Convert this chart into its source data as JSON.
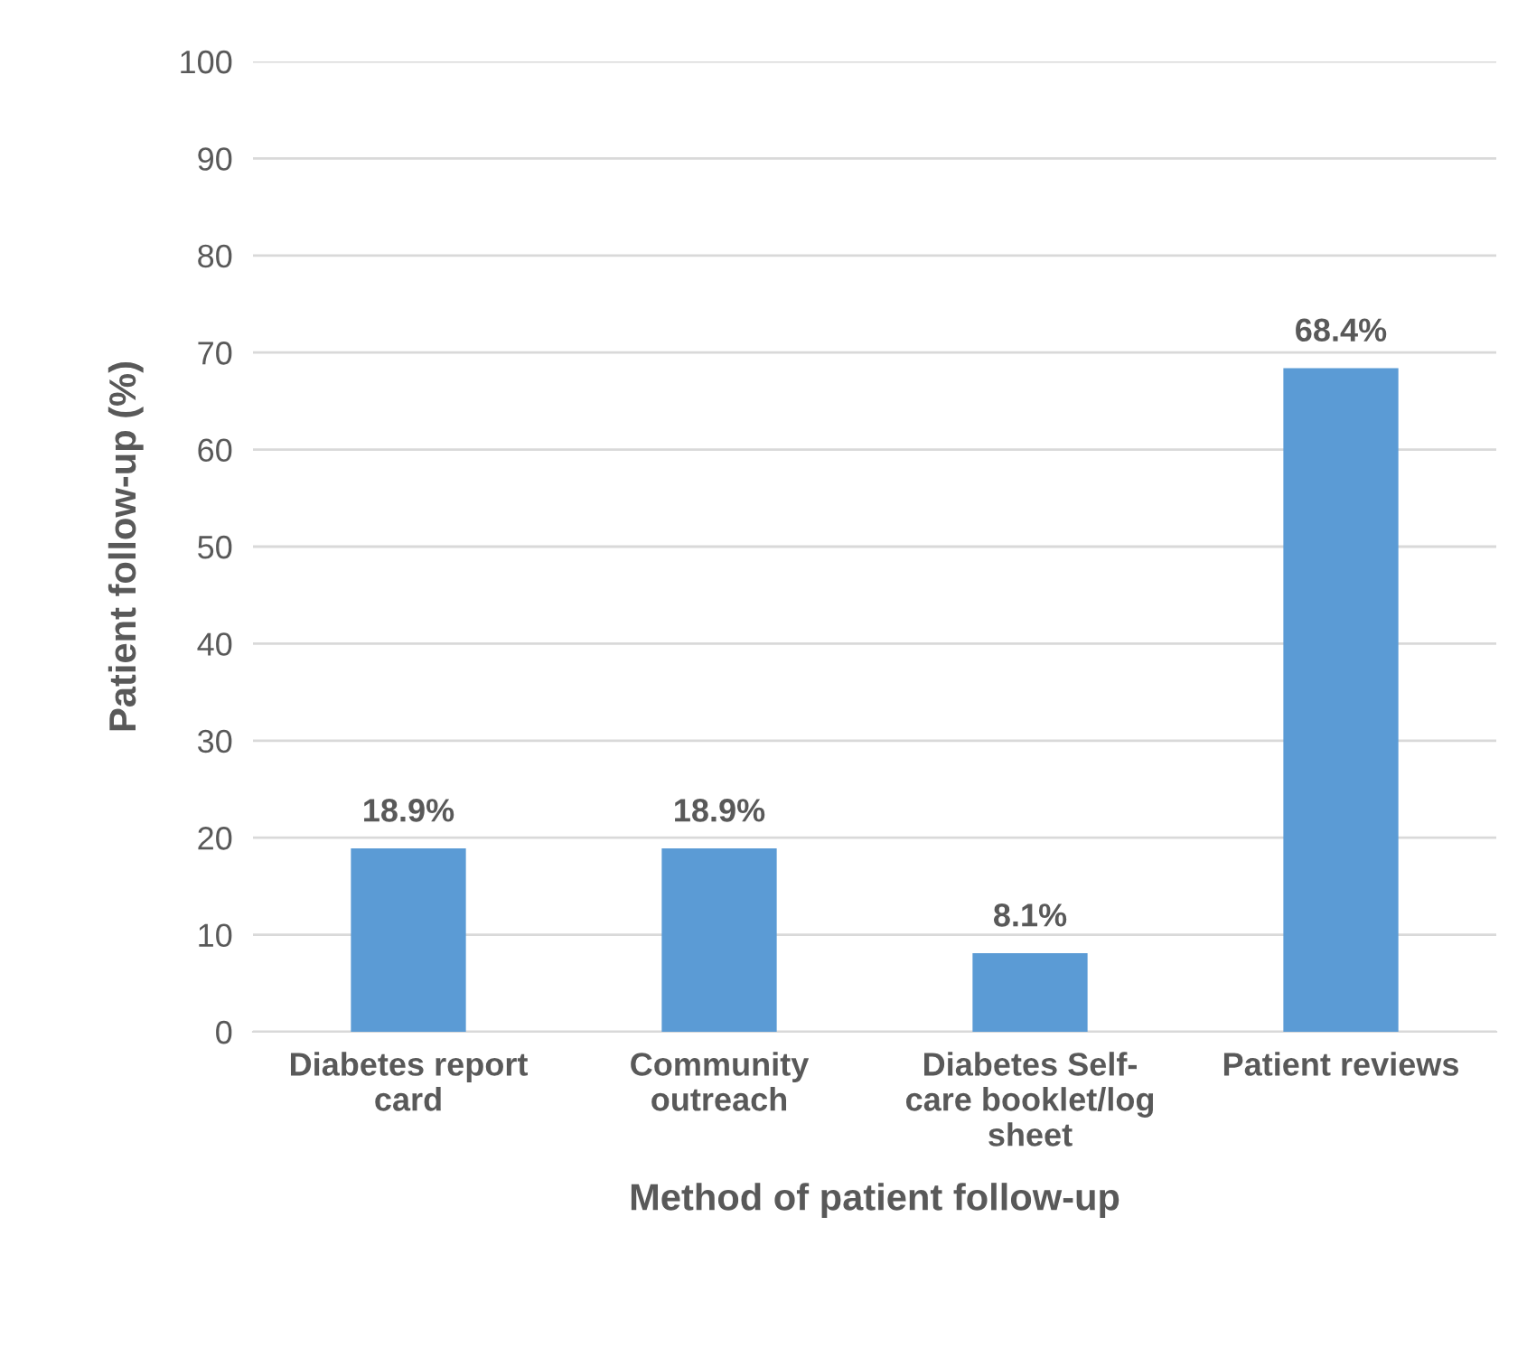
{
  "chart_data": {
    "type": "bar",
    "xlabel": "Method of patient follow-up",
    "ylabel": "Patient follow-up (%)",
    "categories": [
      "Diabetes report\ncard",
      "Community\noutreach",
      "Diabetes Self-\ncare booklet/log\nsheet",
      "Patient reviews"
    ],
    "values": [
      18.9,
      18.9,
      8.1,
      68.4
    ],
    "value_labels": [
      "18.9%",
      "18.9%",
      "8.1%",
      "68.4%"
    ],
    "color": "#5b9bd5",
    "ylim": [
      0,
      100
    ],
    "yticks": [
      0,
      10,
      20,
      30,
      40,
      50,
      60,
      70,
      80,
      90,
      100
    ],
    "grid": "y",
    "legend": false
  }
}
